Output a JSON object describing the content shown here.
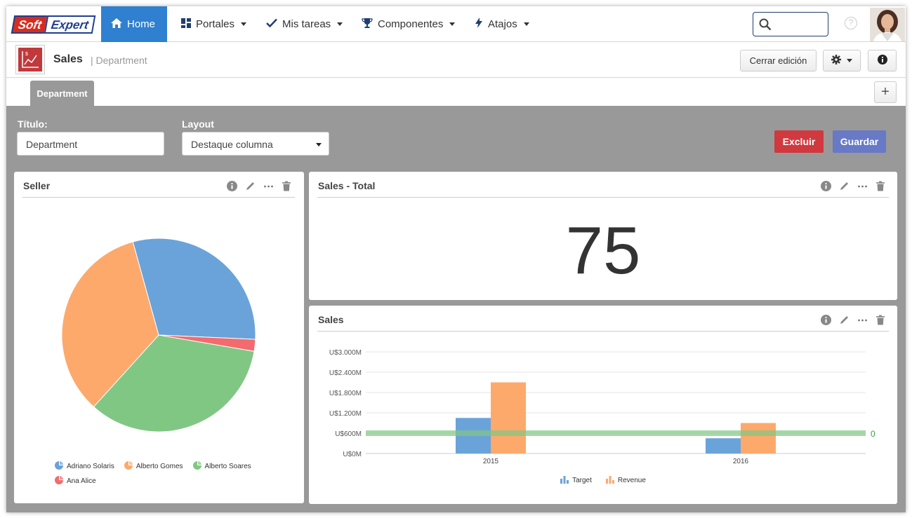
{
  "nav": {
    "logo_part1": "Soft",
    "logo_part2": "Expert",
    "items": [
      {
        "label": "Home",
        "icon": "home-icon"
      },
      {
        "label": "Portales",
        "icon": "dashboard-icon"
      },
      {
        "label": "Mis tareas",
        "icon": "check-icon"
      },
      {
        "label": "Componentes",
        "icon": "trophy-icon"
      },
      {
        "label": "Atajos",
        "icon": "bolt-icon"
      }
    ],
    "help": "?"
  },
  "header": {
    "title": "Sales",
    "subtitle": "| Department",
    "close_edit": "Cerrar edición"
  },
  "tabs": {
    "active": "Department",
    "add": "+"
  },
  "form": {
    "title_label": "Título:",
    "title_value": "Department",
    "layout_label": "Layout",
    "layout_value": "Destaque columna",
    "delete": "Excluir",
    "save": "Guardar"
  },
  "colors": {
    "blue": "#6aa3d9",
    "orange": "#fda96c",
    "green": "#81c784",
    "red": "#f26b6e",
    "nav_active": "#2f80d0"
  },
  "panels": {
    "seller": {
      "title": "Seller"
    },
    "total": {
      "title": "Sales - Total",
      "value": "75"
    },
    "sales": {
      "title": "Sales"
    }
  },
  "chart_data": [
    {
      "type": "pie",
      "title": "Seller",
      "slices": [
        {
          "label": "Adriano Solaris",
          "value": 30,
          "color": "#6aa3d9"
        },
        {
          "label": "Ana Alice",
          "value": 2,
          "color": "#f26b6e"
        },
        {
          "label": "Alberto Soares",
          "value": 34,
          "color": "#81c784"
        },
        {
          "label": "Alberto Gomes",
          "value": 34,
          "color": "#fda96c"
        }
      ],
      "legend": [
        "Adriano Solaris",
        "Alberto Gomes",
        "Alberto Soares",
        "Ana Alice"
      ],
      "legend_position": "bottom"
    },
    {
      "type": "bar",
      "title": "Sales",
      "categories": [
        "2015",
        "2016"
      ],
      "series": [
        {
          "name": "Target",
          "values": [
            1050,
            450
          ],
          "color": "#6aa3d9"
        },
        {
          "name": "Revenue",
          "values": [
            2100,
            900
          ],
          "color": "#fda96c"
        }
      ],
      "reference_line": {
        "value": 600,
        "label": "0",
        "color": "#81c784"
      },
      "yticks": [
        "U$0M",
        "U$600M",
        "U$1.200M",
        "U$1.800M",
        "U$2.400M",
        "U$3.000M"
      ],
      "ylim": [
        0,
        3000
      ],
      "grid": true,
      "legend_position": "bottom"
    }
  ]
}
